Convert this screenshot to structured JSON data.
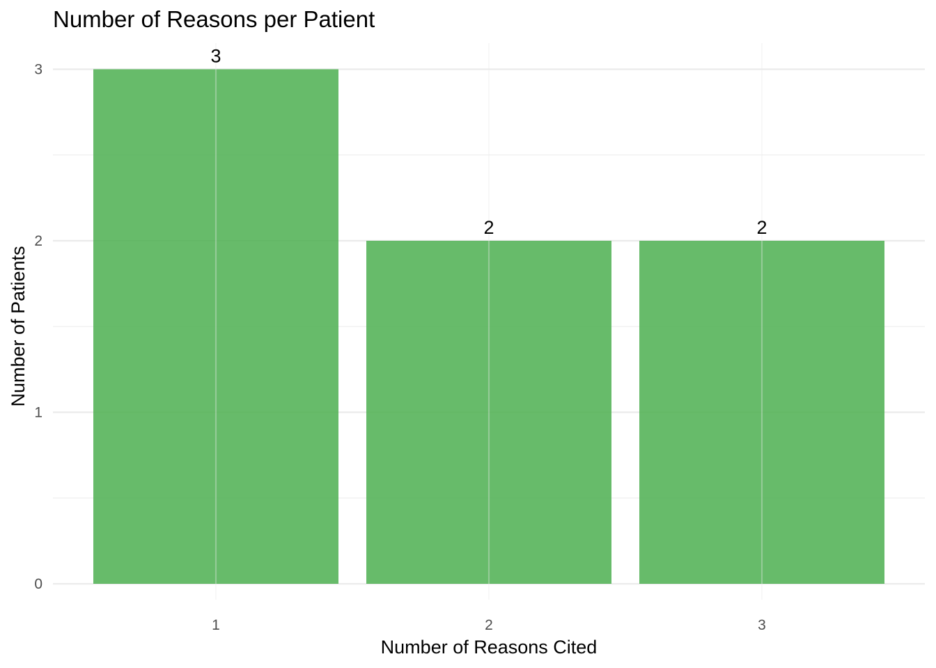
{
  "chart_data": {
    "type": "bar",
    "title": "Number of Reasons per Patient",
    "xlabel": "Number of Reasons Cited",
    "ylabel": "Number of Patients",
    "categories": [
      "1",
      "2",
      "3"
    ],
    "values": [
      3,
      2,
      2
    ],
    "data_labels": [
      "3",
      "2",
      "2"
    ],
    "yticks": [
      0,
      1,
      2,
      3
    ],
    "ylim": [
      0,
      3.15
    ],
    "grid": true,
    "legend": "none",
    "colors": {
      "bar": "#4CAF50",
      "grid": "#ebebeb",
      "background": "#ffffff"
    }
  }
}
